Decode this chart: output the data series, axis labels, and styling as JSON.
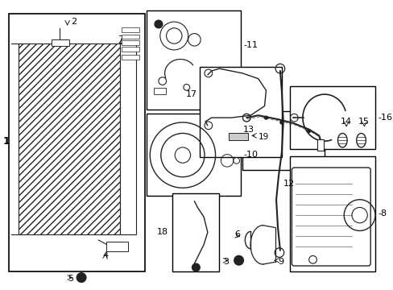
{
  "bg": "#ffffff",
  "lc": "#222222",
  "bc": "#000000",
  "tc": "#000000",
  "fig_w": 4.89,
  "fig_h": 3.6,
  "dpi": 100
}
